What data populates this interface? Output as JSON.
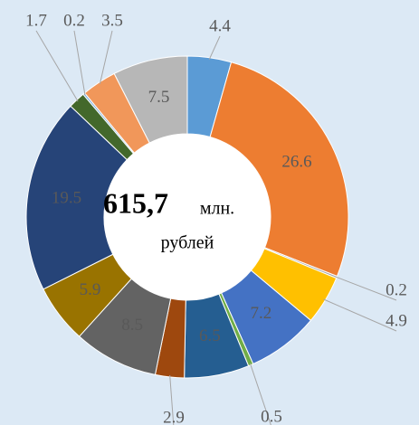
{
  "chart_data": {
    "type": "donut",
    "center_value": "615,7",
    "center_unit": "млн.",
    "center_text": "рублей",
    "categories": [
      null,
      null,
      null,
      null,
      null,
      null,
      null,
      null,
      null,
      null,
      null,
      null,
      null,
      null,
      null
    ],
    "values": [
      4.4,
      26.6,
      0.2,
      4.9,
      7.2,
      0.5,
      6.5,
      2.9,
      8.5,
      5.9,
      19.5,
      1.7,
      0.2,
      3.5,
      7.5
    ],
    "colors": [
      "#5b9bd5",
      "#ed7d31",
      "#a5a5a5",
      "#ffc000",
      "#4472c4",
      "#70ad47",
      "#255e91",
      "#9e480e",
      "#636363",
      "#997300",
      "#264478",
      "#43682b",
      "#7cafdd",
      "#f1975a",
      "#b7b7b7"
    ]
  }
}
